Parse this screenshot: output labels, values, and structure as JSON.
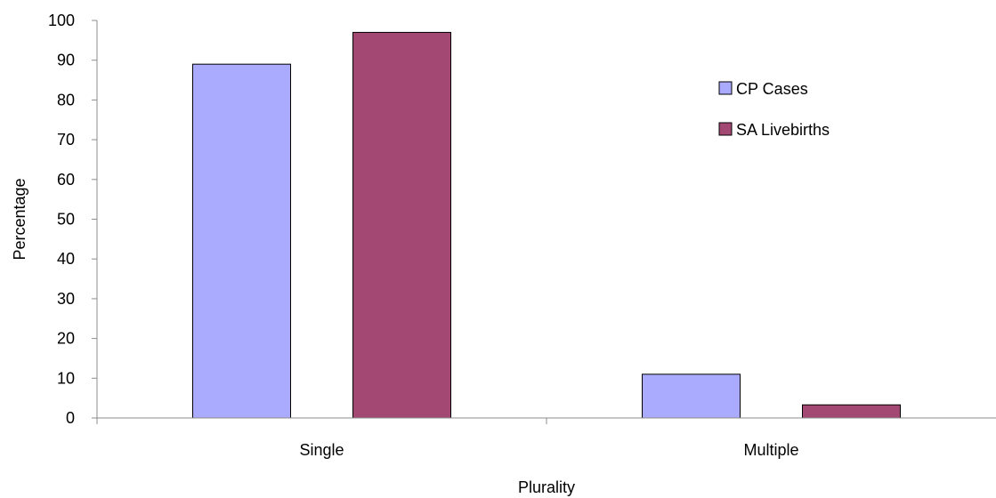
{
  "chart_data": {
    "type": "bar",
    "title": "",
    "xlabel": "Plurality",
    "ylabel": "Percentage",
    "categories": [
      "Single",
      "Multiple"
    ],
    "series": [
      {
        "name": "CP Cases",
        "values": [
          89,
          11
        ],
        "color": "#aaaaff"
      },
      {
        "name": "SA Livebirths",
        "values": [
          97,
          3.3
        ],
        "color": "#a34873"
      }
    ],
    "ylim": [
      0,
      100
    ],
    "yticks": [
      0,
      10,
      20,
      30,
      40,
      50,
      60,
      70,
      80,
      90,
      100
    ],
    "grid": false,
    "legend_position": "top-right"
  }
}
